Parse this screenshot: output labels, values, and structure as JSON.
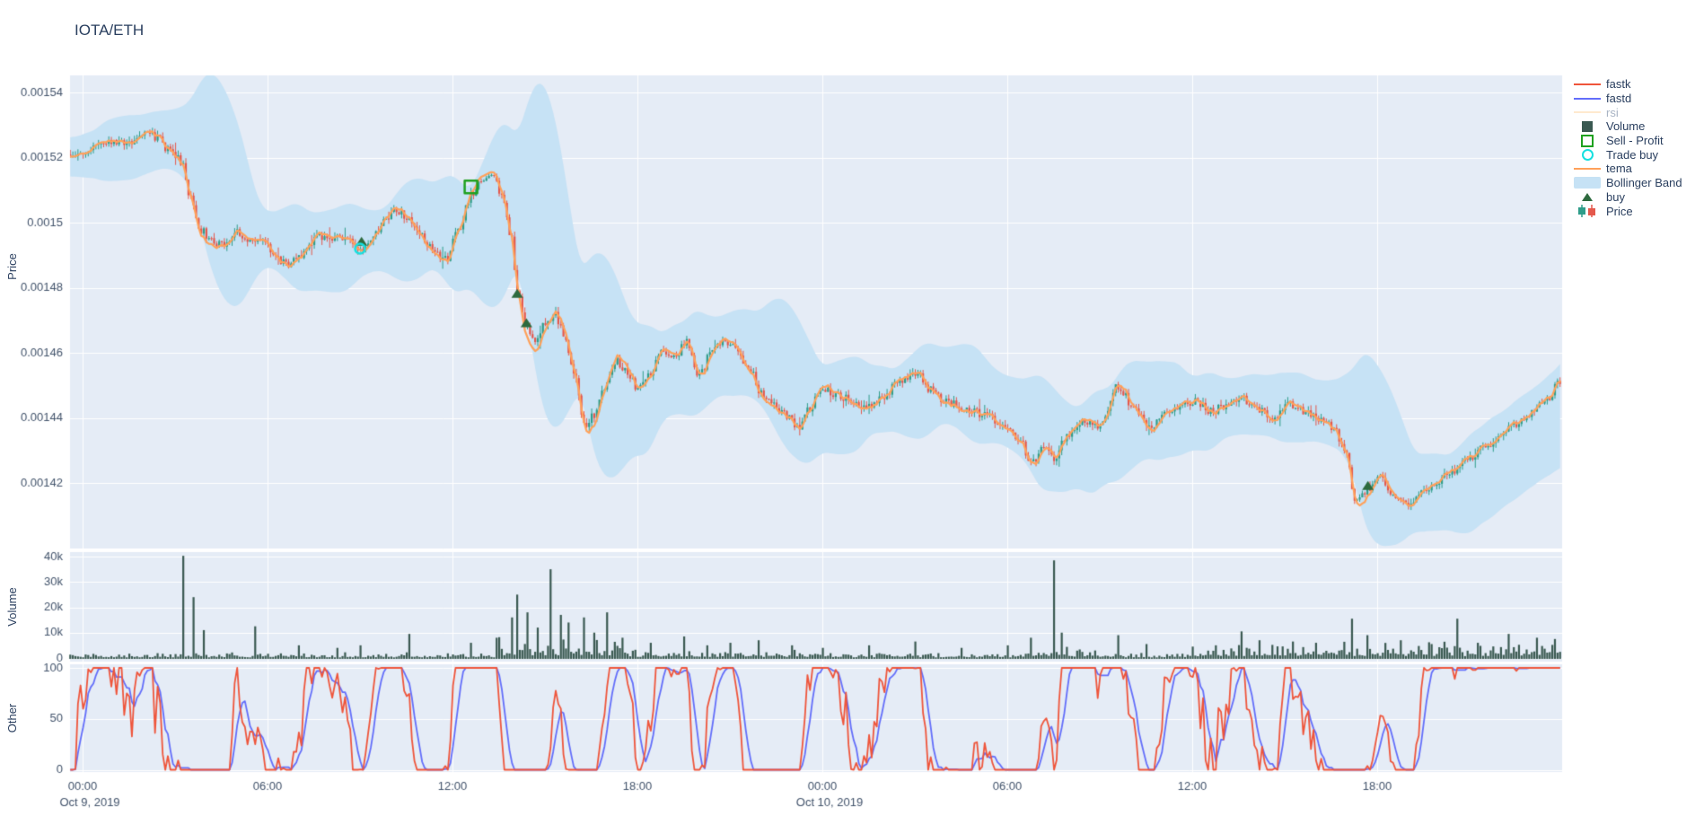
{
  "title": "IOTA/ETH",
  "colors": {
    "plot_background": "#E5ECF6",
    "grid": "#FFFFFF",
    "tick_text": "#42536B",
    "title_text": "#2A3F5F",
    "candle_up": "#2F9D8A",
    "candle_down": "#E4584C",
    "tema": "#FFA15A",
    "bollinger": "#C6E2F5",
    "volume_bar": "#3A5951",
    "fastk": "#EF553B",
    "fastd": "#636EFA",
    "rsi_muted": "#FFD9A8",
    "sell_profit": "#1FA11F",
    "trade_buy": "#16E0E0",
    "buy": "#2D6A3E"
  },
  "xaxis": {
    "range_hours": 48,
    "ticks": [
      {
        "h": 0,
        "label": "00:00",
        "date": "Oct 9, 2019"
      },
      {
        "h": 6,
        "label": "06:00"
      },
      {
        "h": 12,
        "label": "12:00"
      },
      {
        "h": 18,
        "label": "18:00"
      },
      {
        "h": 24,
        "label": "00:00",
        "date": "Oct 10, 2019"
      },
      {
        "h": 30,
        "label": "06:00"
      },
      {
        "h": 36,
        "label": "12:00"
      },
      {
        "h": 42,
        "label": "18:00"
      },
      {
        "h": 48,
        "label": ""
      }
    ]
  },
  "chart_data": [
    {
      "id": "price",
      "type": "candlestick",
      "ylabel": "Price",
      "ylim_micro": [
        1399,
        1545
      ],
      "yticks": [
        {
          "v": 1540,
          "label": "0.00154"
        },
        {
          "v": 1520,
          "label": "0.00152"
        },
        {
          "v": 1500,
          "label": "0.0015"
        },
        {
          "v": 1480,
          "label": "0.00148"
        },
        {
          "v": 1460,
          "label": "0.00146"
        },
        {
          "v": 1440,
          "label": "0.00144"
        },
        {
          "v": 1420,
          "label": "0.00142"
        },
        {
          "v": 1400,
          "label": ""
        }
      ],
      "ohlc_interval_minutes": 5,
      "price_scale": "micro = value x 1e-6 (1521 = 0.001521)",
      "series": [
        {
          "name": "Price",
          "type": "candlestick",
          "visible": true
        },
        {
          "name": "tema",
          "type": "line",
          "visible": true
        },
        {
          "name": "Bollinger Band",
          "type": "band",
          "visible": true
        },
        {
          "name": "rsi",
          "type": "line",
          "visible": false
        }
      ],
      "close_anchors_micro": [
        [
          0,
          1521
        ],
        [
          0.5,
          1523
        ],
        [
          1,
          1525
        ],
        [
          1.5,
          1524
        ],
        [
          2,
          1528
        ],
        [
          2.4,
          1526
        ],
        [
          2.8,
          1522
        ],
        [
          3.2,
          1519
        ],
        [
          3.5,
          1508
        ],
        [
          3.8,
          1498
        ],
        [
          4.2,
          1494
        ],
        [
          4.6,
          1493
        ],
        [
          5,
          1497
        ],
        [
          5.4,
          1494
        ],
        [
          5.8,
          1495
        ],
        [
          6.2,
          1491
        ],
        [
          6.6,
          1487
        ],
        [
          7,
          1489
        ],
        [
          7.4,
          1494
        ],
        [
          7.8,
          1496
        ],
        [
          8.2,
          1495
        ],
        [
          8.6,
          1494
        ],
        [
          9,
          1492
        ],
        [
          9.4,
          1495
        ],
        [
          9.8,
          1501
        ],
        [
          10.2,
          1504
        ],
        [
          10.6,
          1501
        ],
        [
          11,
          1496
        ],
        [
          11.4,
          1491
        ],
        [
          11.8,
          1489
        ],
        [
          12.2,
          1498
        ],
        [
          12.6,
          1508
        ],
        [
          13,
          1513
        ],
        [
          13.3,
          1514
        ],
        [
          13.6,
          1509
        ],
        [
          13.9,
          1496
        ],
        [
          14.1,
          1479
        ],
        [
          14.4,
          1468
        ],
        [
          14.7,
          1464
        ],
        [
          15,
          1469
        ],
        [
          15.3,
          1472
        ],
        [
          15.6,
          1466
        ],
        [
          15.9,
          1455
        ],
        [
          16.3,
          1438
        ],
        [
          16.6,
          1441
        ],
        [
          17,
          1450
        ],
        [
          17.3,
          1458
        ],
        [
          17.6,
          1455
        ],
        [
          18,
          1449
        ],
        [
          18.4,
          1454
        ],
        [
          18.8,
          1461
        ],
        [
          19.2,
          1459
        ],
        [
          19.6,
          1463
        ],
        [
          20,
          1453
        ],
        [
          20.4,
          1460
        ],
        [
          20.8,
          1464
        ],
        [
          21.2,
          1461
        ],
        [
          21.6,
          1456
        ],
        [
          22,
          1448
        ],
        [
          22.4,
          1444
        ],
        [
          22.8,
          1441
        ],
        [
          23.2,
          1437
        ],
        [
          23.6,
          1443
        ],
        [
          24,
          1449
        ],
        [
          24.5,
          1447
        ],
        [
          25,
          1445
        ],
        [
          25.5,
          1443
        ],
        [
          26,
          1447
        ],
        [
          26.5,
          1451
        ],
        [
          27,
          1454
        ],
        [
          27.5,
          1449
        ],
        [
          28,
          1445
        ],
        [
          28.6,
          1443
        ],
        [
          29.2,
          1441
        ],
        [
          29.8,
          1438
        ],
        [
          30.4,
          1433
        ],
        [
          30.8,
          1426
        ],
        [
          31.2,
          1431
        ],
        [
          31.5,
          1427
        ],
        [
          31.9,
          1434
        ],
        [
          32.4,
          1439
        ],
        [
          33,
          1437
        ],
        [
          33.6,
          1450
        ],
        [
          34.1,
          1443
        ],
        [
          34.6,
          1437
        ],
        [
          35.1,
          1441
        ],
        [
          35.6,
          1444
        ],
        [
          36.1,
          1445
        ],
        [
          36.6,
          1442
        ],
        [
          37.1,
          1444
        ],
        [
          37.6,
          1446
        ],
        [
          38.1,
          1443
        ],
        [
          38.6,
          1440
        ],
        [
          39.1,
          1444
        ],
        [
          39.6,
          1442
        ],
        [
          40.1,
          1440
        ],
        [
          40.6,
          1437
        ],
        [
          41,
          1428
        ],
        [
          41.3,
          1414
        ],
        [
          41.7,
          1418
        ],
        [
          42.1,
          1421
        ],
        [
          42.5,
          1417
        ],
        [
          43,
          1413
        ],
        [
          43.5,
          1417
        ],
        [
          44,
          1421
        ],
        [
          44.5,
          1424
        ],
        [
          45,
          1428
        ],
        [
          45.5,
          1431
        ],
        [
          46,
          1435
        ],
        [
          46.5,
          1438
        ],
        [
          47,
          1441
        ],
        [
          47.5,
          1446
        ],
        [
          48,
          1452
        ]
      ],
      "markers": {
        "trade_buy": {
          "t": 9.0,
          "price_micro": 1492
        },
        "sell_profit": {
          "t": 12.6,
          "price_micro": 1511
        },
        "buy_signals": [
          [
            9.05,
            1494
          ],
          [
            14.1,
            1478
          ],
          [
            14.4,
            1469
          ],
          [
            41.7,
            1419
          ]
        ]
      }
    },
    {
      "id": "volume",
      "type": "bar",
      "ylabel": "Volume",
      "ylim": [
        0,
        41500
      ],
      "yticks": [
        {
          "v": 40000,
          "label": "40k"
        },
        {
          "v": 30000,
          "label": "30k"
        },
        {
          "v": 20000,
          "label": "20k"
        },
        {
          "v": 10000,
          "label": "10k"
        },
        {
          "v": 0,
          "label": "0"
        }
      ],
      "baseline_range": [
        250,
        2400
      ],
      "baseline_boost": [
        [
          13.4,
          17.5,
          4
        ],
        [
          17.5,
          24,
          1.6
        ],
        [
          30.5,
          33,
          2
        ],
        [
          36.5,
          48,
          3
        ]
      ],
      "spikes": [
        [
          3.3,
          40300
        ],
        [
          3.6,
          24000
        ],
        [
          3.9,
          11000
        ],
        [
          5.6,
          12500
        ],
        [
          7.0,
          5000
        ],
        [
          8.3,
          4000
        ],
        [
          9.0,
          5000
        ],
        [
          10.6,
          9500
        ],
        [
          12.6,
          6000
        ],
        [
          13.4,
          8000
        ],
        [
          13.9,
          16000
        ],
        [
          14.1,
          25000
        ],
        [
          14.4,
          18000
        ],
        [
          14.8,
          12000
        ],
        [
          15.2,
          35000
        ],
        [
          15.5,
          17000
        ],
        [
          15.8,
          14000
        ],
        [
          16.3,
          16000
        ],
        [
          16.6,
          10000
        ],
        [
          17.0,
          18000
        ],
        [
          17.5,
          8000
        ],
        [
          18.4,
          6000
        ],
        [
          19.5,
          8500
        ],
        [
          20.3,
          5000
        ],
        [
          21.0,
          6000
        ],
        [
          21.9,
          7000
        ],
        [
          23.0,
          5000
        ],
        [
          24.0,
          4000
        ],
        [
          25.5,
          5000
        ],
        [
          27.0,
          6500
        ],
        [
          28.5,
          4000
        ],
        [
          30.0,
          5000
        ],
        [
          30.8,
          8000
        ],
        [
          31.5,
          38500
        ],
        [
          31.8,
          10000
        ],
        [
          33.6,
          9000
        ],
        [
          34.5,
          5500
        ],
        [
          36.0,
          4500
        ],
        [
          36.8,
          5000
        ],
        [
          37.6,
          10500
        ],
        [
          38.2,
          7000
        ],
        [
          39.3,
          6500
        ],
        [
          40.0,
          6000
        ],
        [
          41.2,
          15500
        ],
        [
          41.7,
          9000
        ],
        [
          42.8,
          7000
        ],
        [
          43.8,
          5500
        ],
        [
          44.6,
          15500
        ],
        [
          45.3,
          6000
        ],
        [
          46.3,
          9500
        ],
        [
          47.2,
          8000
        ],
        [
          47.8,
          7500
        ]
      ]
    },
    {
      "id": "other",
      "type": "line",
      "ylabel": "Other",
      "ylim": [
        0,
        100
      ],
      "yticks": [
        {
          "v": 100,
          "label": "100"
        },
        {
          "v": 50,
          "label": "50"
        },
        {
          "v": 0,
          "label": "0"
        }
      ],
      "series": [
        {
          "name": "fastk",
          "desc": "fast stochastic %K, oscillates rail-to-rail 0-100"
        },
        {
          "name": "fastd",
          "desc": "smoothed %D, lags fastk"
        }
      ]
    }
  ],
  "legend": {
    "items": [
      {
        "key": "fastk",
        "label": "fastk",
        "glyph": "line",
        "color": "#EF553B"
      },
      {
        "key": "fastd",
        "label": "fastd",
        "glyph": "line",
        "color": "#636EFA"
      },
      {
        "key": "rsi",
        "label": "rsi",
        "glyph": "line",
        "color": "#FFD9A8",
        "muted": true
      },
      {
        "key": "volume",
        "label": "Volume",
        "glyph": "square",
        "color": "#3A5951"
      },
      {
        "key": "sell-profit",
        "label": "Sell - Profit",
        "glyph": "square-open",
        "color": "#1FA11F"
      },
      {
        "key": "trade-buy",
        "label": "Trade buy",
        "glyph": "circle-open",
        "color": "#16E0E0"
      },
      {
        "key": "tema",
        "label": "tema",
        "glyph": "line",
        "color": "#FFA15A"
      },
      {
        "key": "bollinger",
        "label": "Bollinger Band",
        "glyph": "band",
        "color": "#C6E2F5"
      },
      {
        "key": "buy",
        "label": "buy",
        "glyph": "triangle",
        "color": "#2D6A3E"
      },
      {
        "key": "price",
        "label": "Price",
        "glyph": "candle",
        "color": "#2F9D8A",
        "color2": "#E4584C"
      }
    ]
  }
}
